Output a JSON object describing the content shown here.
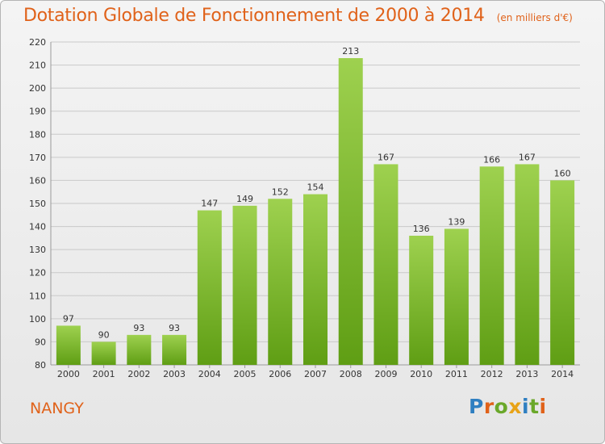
{
  "colors": {
    "title": "#e0621a",
    "bar_top": "#9ed14f",
    "bar_bottom": "#5f9e14",
    "grid": "#c9c9c9",
    "axis_text": "#333333"
  },
  "header": {
    "title": "Dotation Globale de Fonctionnement de 2000 à 2014",
    "subtitle": "(en milliers d'€)"
  },
  "footer": {
    "commune": "NANGY",
    "logo_text": "Proxiti"
  },
  "chart_data": {
    "type": "bar",
    "title": "Dotation Globale de Fonctionnement de 2000 à 2014",
    "subtitle": "(en milliers d'€)",
    "xlabel": "",
    "ylabel": "",
    "categories": [
      "2000",
      "2001",
      "2002",
      "2003",
      "2004",
      "2005",
      "2006",
      "2007",
      "2008",
      "2009",
      "2010",
      "2011",
      "2012",
      "2013",
      "2014"
    ],
    "values": [
      97,
      90,
      93,
      93,
      147,
      149,
      152,
      154,
      213,
      167,
      136,
      139,
      166,
      167,
      160
    ],
    "ylim": [
      80,
      220
    ],
    "yticks": [
      80,
      90,
      100,
      110,
      120,
      130,
      140,
      150,
      160,
      170,
      180,
      190,
      200,
      210,
      220
    ],
    "grid": true,
    "data_labels": true
  }
}
